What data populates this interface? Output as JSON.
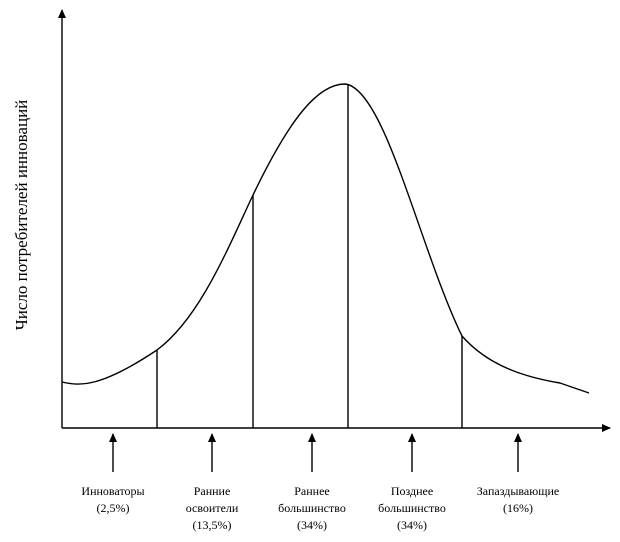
{
  "y_axis_label": "Число потребителей инноваций",
  "segments": [
    {
      "name": [
        "Инноваторы"
      ],
      "share": "(2,5%)"
    },
    {
      "name": [
        "Ранние",
        "освоители"
      ],
      "share": "(13,5%)"
    },
    {
      "name": [
        "Раннее",
        "большинство"
      ],
      "share": "(34%)"
    },
    {
      "name": [
        "Позднее",
        "большинство"
      ],
      "share": "(34%)"
    },
    {
      "name": [
        "Запаздывающие"
      ],
      "share": "(16%)"
    }
  ]
}
